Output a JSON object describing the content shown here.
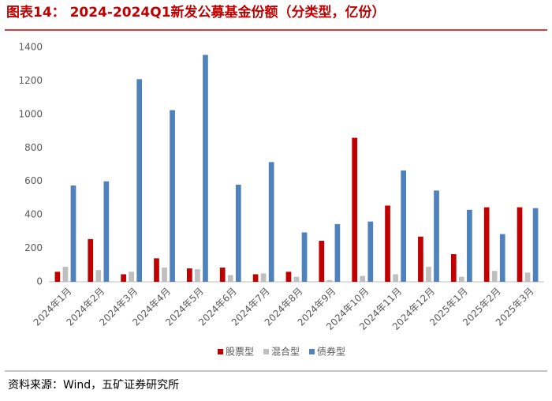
{
  "chart_data": {
    "type": "bar",
    "title": "图表14： 2024-2024Q1新发公募基金份额（分类型，亿份）",
    "source": "资料来源：Wind，五矿证券研究所",
    "categories": [
      "2024年1月",
      "2024年2月",
      "2024年3月",
      "2024年4月",
      "2024年5月",
      "2024年6月",
      "2024年7月",
      "2024年8月",
      "2024年9月",
      "2024年10月",
      "2024年11月",
      "2024年12月",
      "2025年1月",
      "2025年2月",
      "2025年3月"
    ],
    "series": [
      {
        "name": "股票型",
        "color": "#c00000",
        "values": [
          60,
          255,
          45,
          140,
          80,
          85,
          45,
          60,
          245,
          860,
          455,
          270,
          165,
          445,
          445
        ]
      },
      {
        "name": "混合型",
        "color": "#bfbfbf",
        "values": [
          90,
          70,
          60,
          85,
          75,
          40,
          50,
          30,
          10,
          35,
          45,
          90,
          30,
          65,
          55
        ]
      },
      {
        "name": "债券型",
        "color": "#4f81bd",
        "values": [
          575,
          600,
          1210,
          1025,
          1355,
          580,
          715,
          295,
          345,
          360,
          665,
          545,
          430,
          285,
          440
        ]
      }
    ],
    "ylim": [
      0,
      1400
    ],
    "yticks": [
      0,
      200,
      400,
      600,
      800,
      1000,
      1200,
      1400
    ],
    "grid": false
  }
}
